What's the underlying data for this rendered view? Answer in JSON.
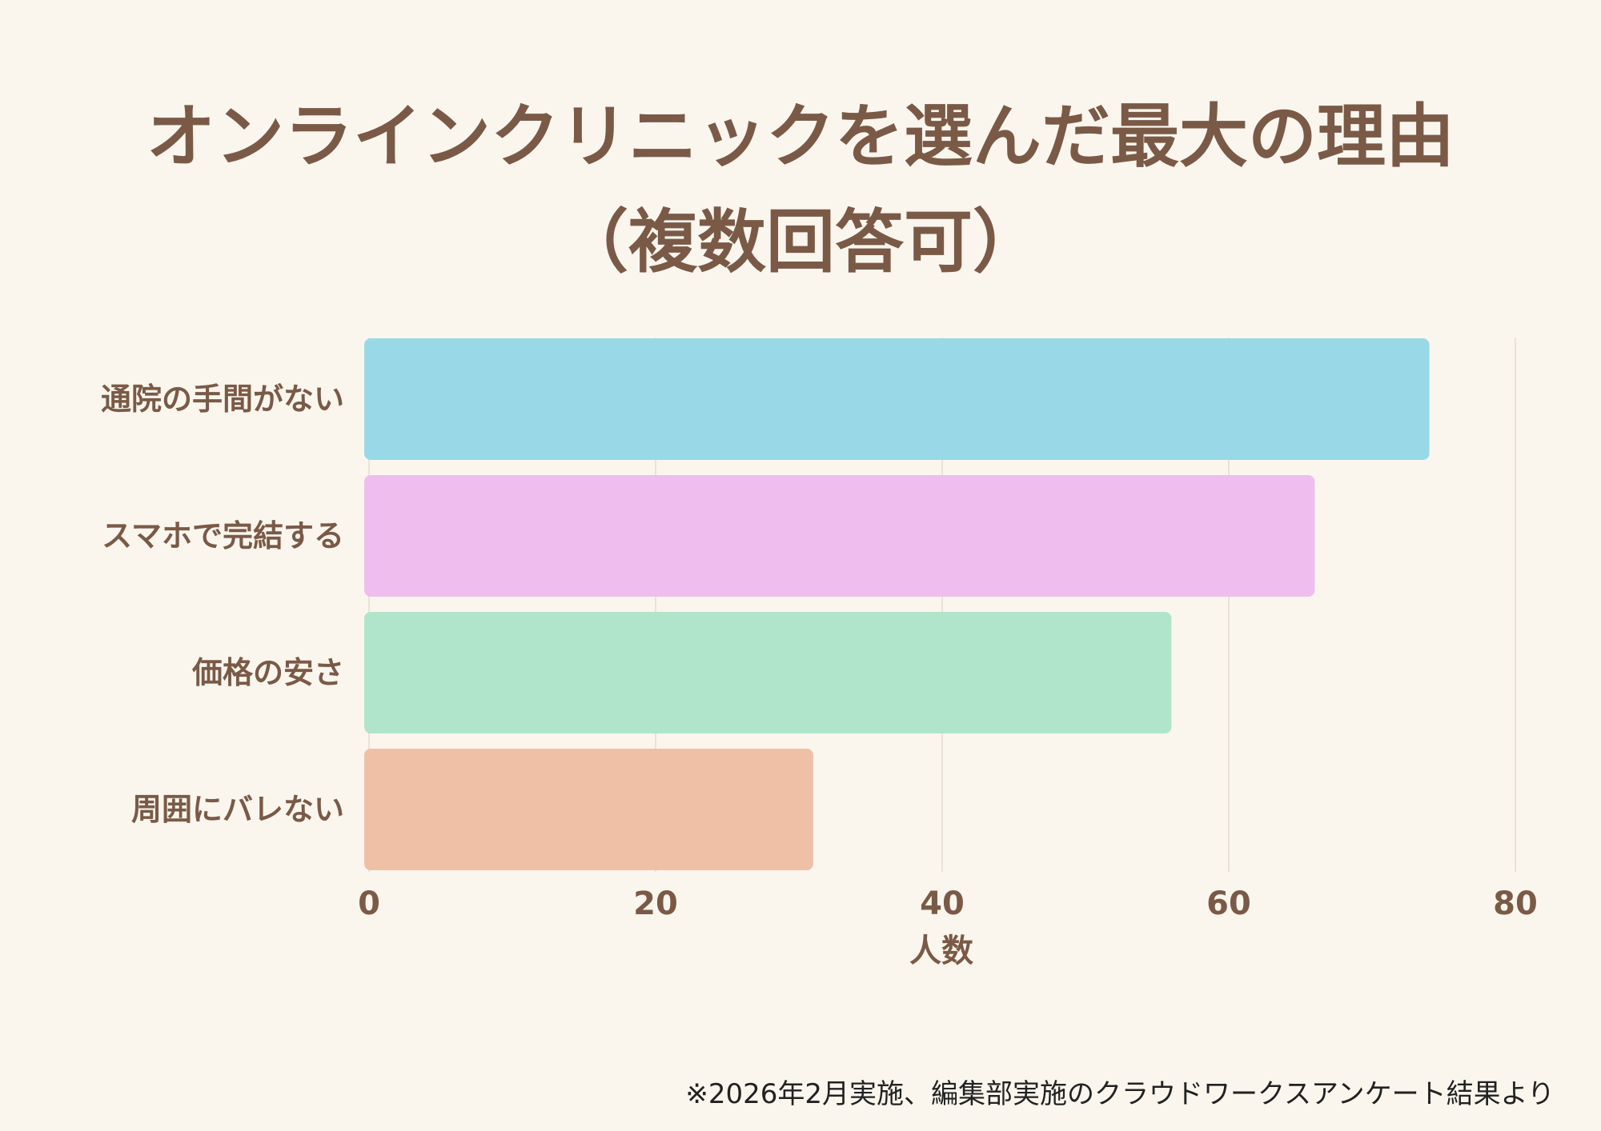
{
  "chart_data": {
    "type": "bar",
    "orientation": "horizontal",
    "title": "オンラインクリニックを選んだ最大の理由",
    "subtitle": "（複数回答可）",
    "categories": [
      "通院の手間がない",
      "スマホで完結する",
      "価格の安さ",
      "周囲にバレない"
    ],
    "values": [
      74,
      66,
      56,
      31
    ],
    "colors": [
      "#99d9e7",
      "#efbdee",
      "#b1e5cb",
      "#efc0a6"
    ],
    "xlabel": "人数",
    "ylabel": "",
    "xlim": [
      0,
      80
    ],
    "xticks": [
      "0",
      "20",
      "40",
      "60",
      "80"
    ],
    "grid": "vertical"
  },
  "footnote": "※2026年2月実施、編集部実施のクラウドワークスアンケート結果より"
}
